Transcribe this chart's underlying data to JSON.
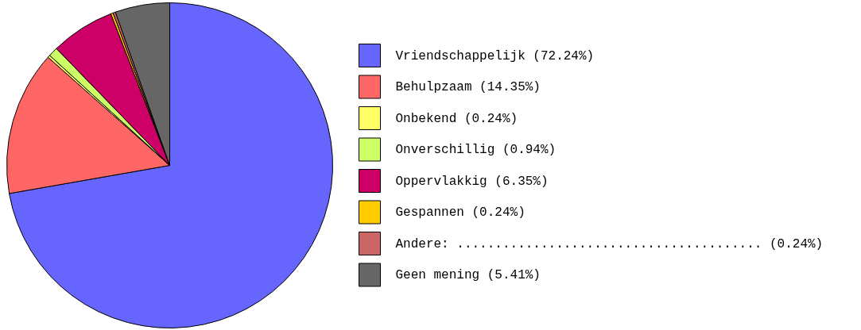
{
  "chart_data": {
    "type": "pie",
    "categories": [
      "Vriendschappelijk (72.24%)",
      "Behulpzaam (14.35%)",
      "Onbekend (0.24%)",
      "Onverschillig (0.94%)",
      "Oppervlakkig (6.35%)",
      "Gespannen (0.24%)",
      "Andere: ........................................ (0.24%)",
      "Geen mening (5.41%)"
    ],
    "values": [
      72.24,
      14.35,
      0.24,
      0.94,
      6.35,
      0.24,
      0.24,
      5.41
    ],
    "colors": [
      "#6666ff",
      "#ff6666",
      "#ffff66",
      "#ccff66",
      "#cc0066",
      "#ffcc00",
      "#cc6666",
      "#666666"
    ],
    "legend": "right"
  }
}
